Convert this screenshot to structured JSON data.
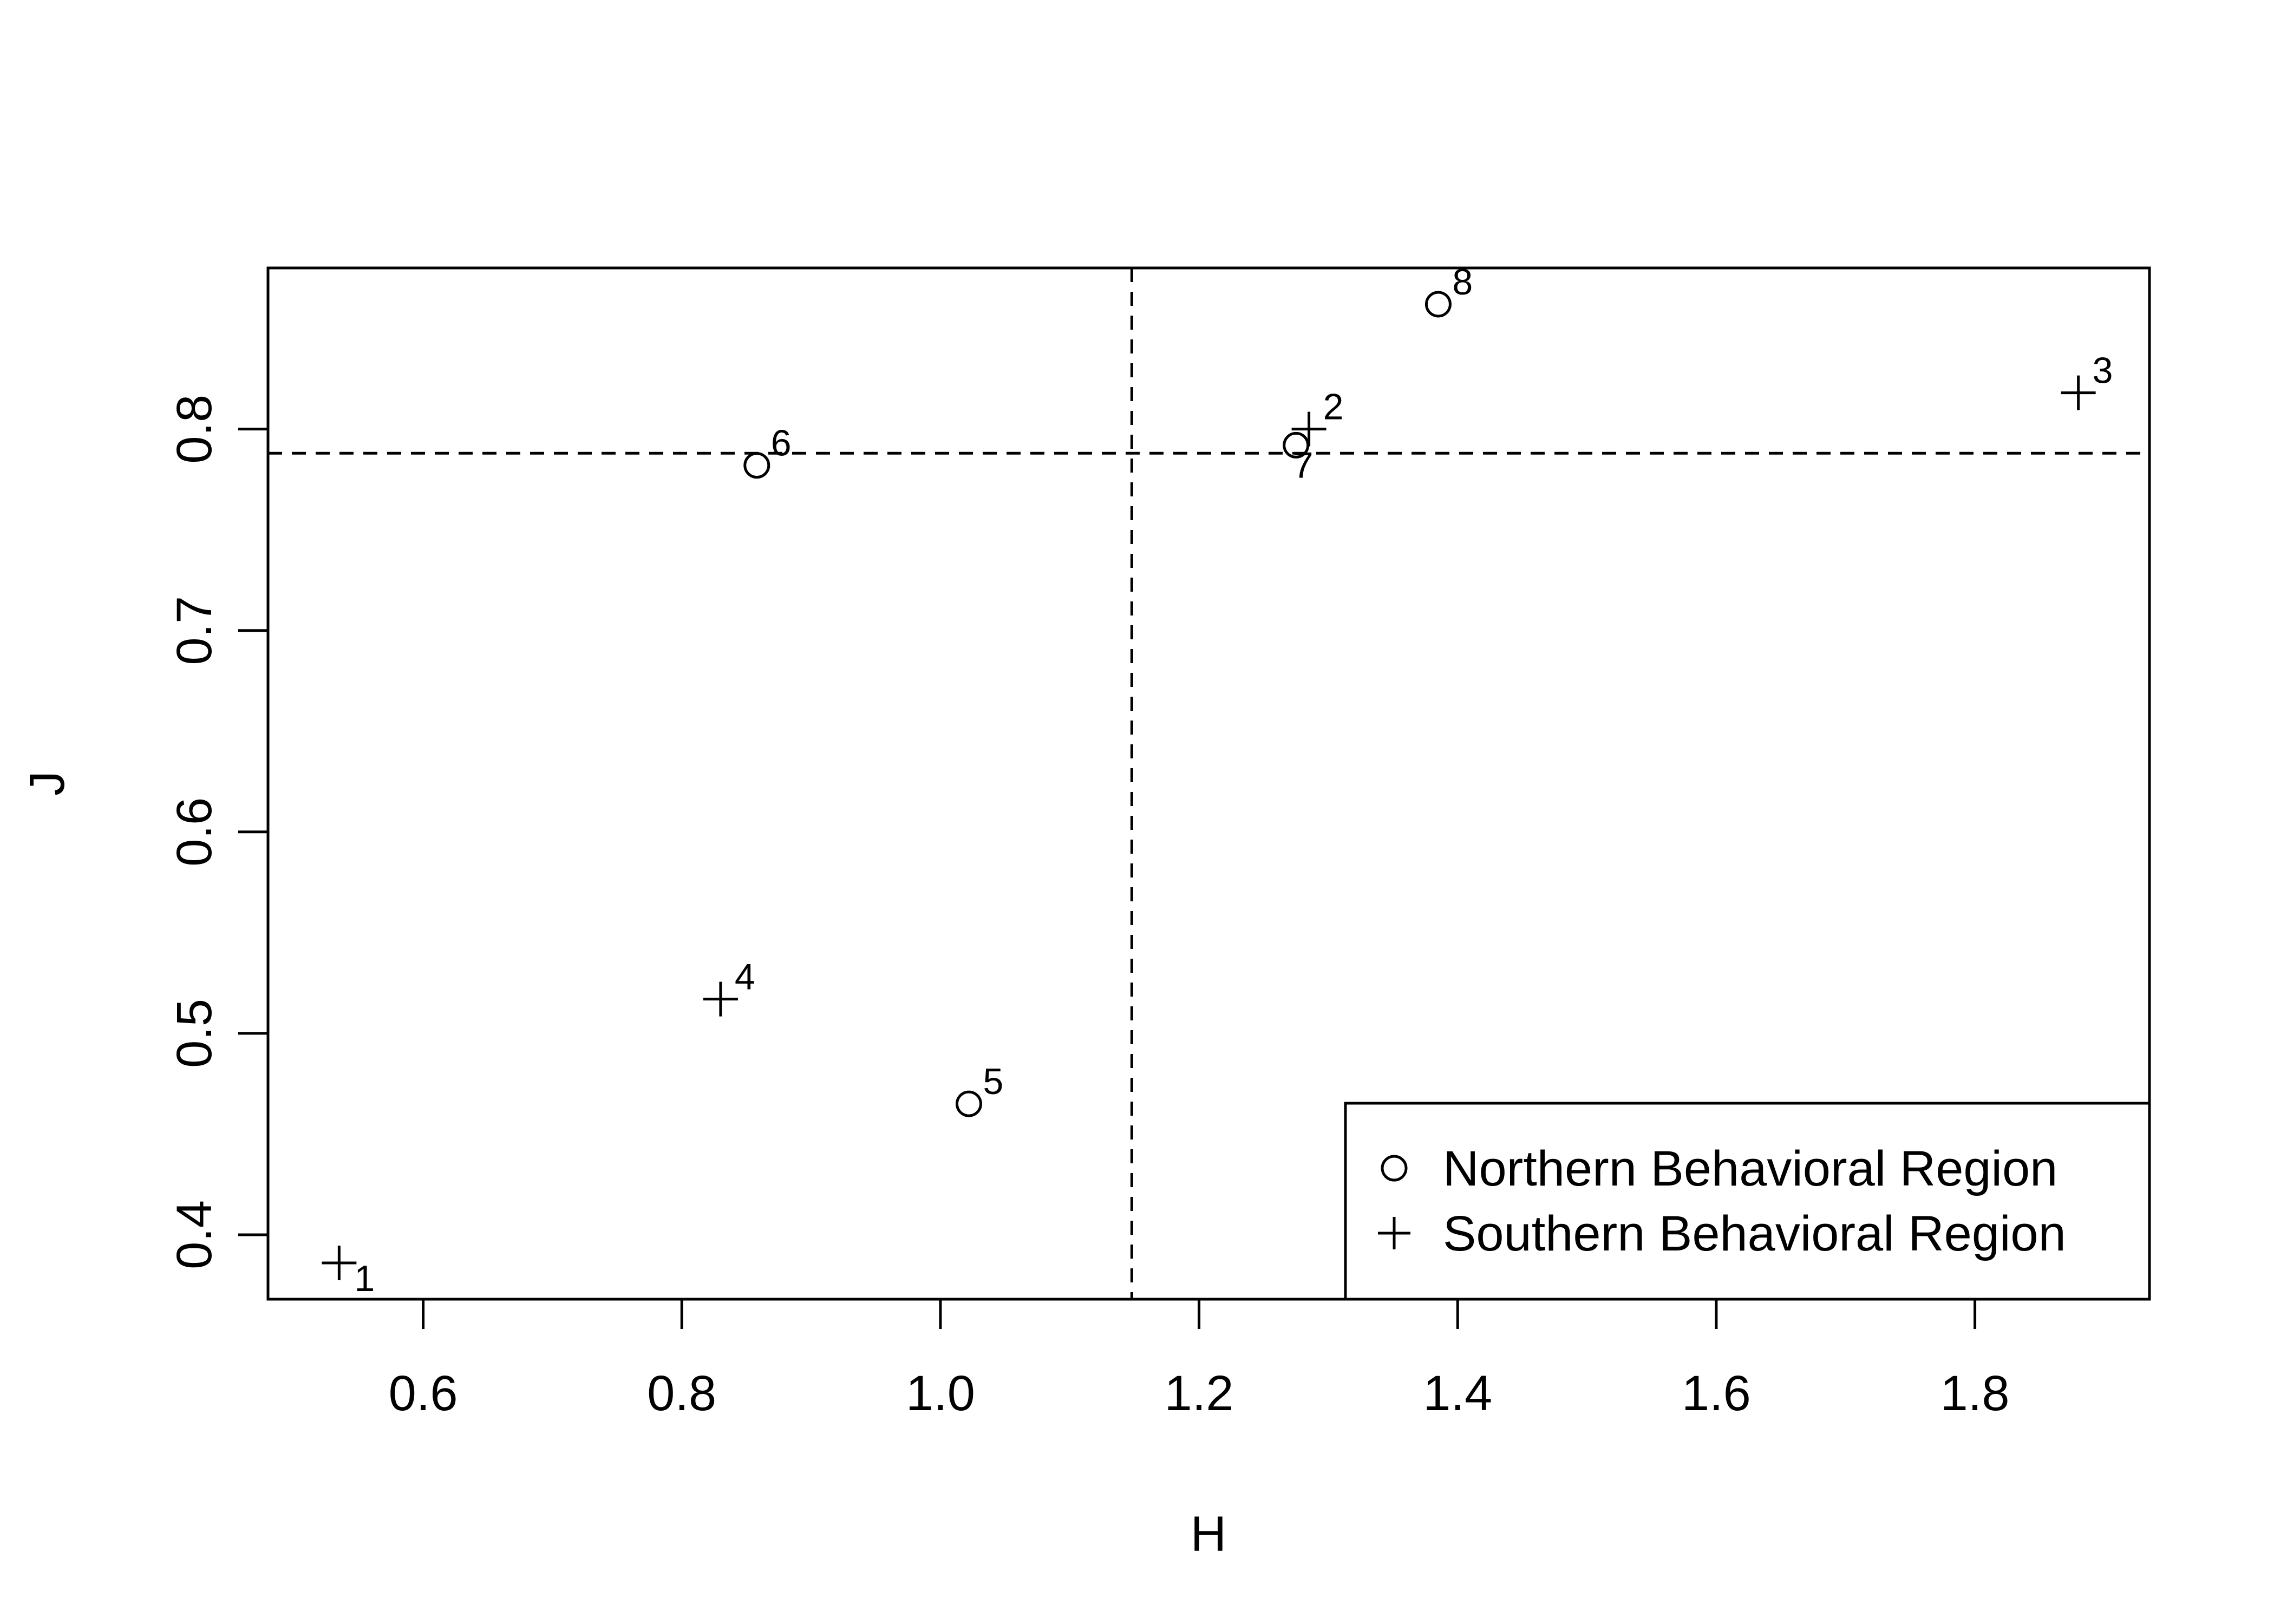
{
  "chart_data": {
    "type": "scatter",
    "xlabel": "H",
    "ylabel": "J",
    "xlim": [
      0.48,
      1.935
    ],
    "ylim": [
      0.368,
      0.88
    ],
    "x_ticks": [
      0.6,
      0.8,
      1.0,
      1.2,
      1.4,
      1.6,
      1.8
    ],
    "y_ticks": [
      0.4,
      0.5,
      0.6,
      0.7,
      0.8
    ],
    "x_tick_labels": [
      "0.6",
      "0.8",
      "1.0",
      "1.2",
      "1.4",
      "1.6",
      "1.8"
    ],
    "y_tick_labels": [
      "0.4",
      "0.5",
      "0.6",
      "0.7",
      "0.8"
    ],
    "grid": false,
    "reference_lines": {
      "vertical_x": 1.148,
      "horizontal_y": 0.788
    },
    "legend_position": "bottom-right",
    "series": [
      {
        "name": "Northern Behavioral Region",
        "marker": "circle",
        "points": [
          {
            "label": "5",
            "x": 1.022,
            "y": 0.465
          },
          {
            "label": "6",
            "x": 0.858,
            "y": 0.782
          },
          {
            "label": "7",
            "x": 1.275,
            "y": 0.792
          },
          {
            "label": "8",
            "x": 1.385,
            "y": 0.862
          }
        ]
      },
      {
        "name": "Southern Behavioral Region",
        "marker": "plus",
        "points": [
          {
            "label": "1",
            "x": 0.535,
            "y": 0.386
          },
          {
            "label": "2",
            "x": 1.285,
            "y": 0.8
          },
          {
            "label": "3",
            "x": 1.88,
            "y": 0.818
          },
          {
            "label": "4",
            "x": 0.83,
            "y": 0.517
          }
        ]
      }
    ]
  }
}
